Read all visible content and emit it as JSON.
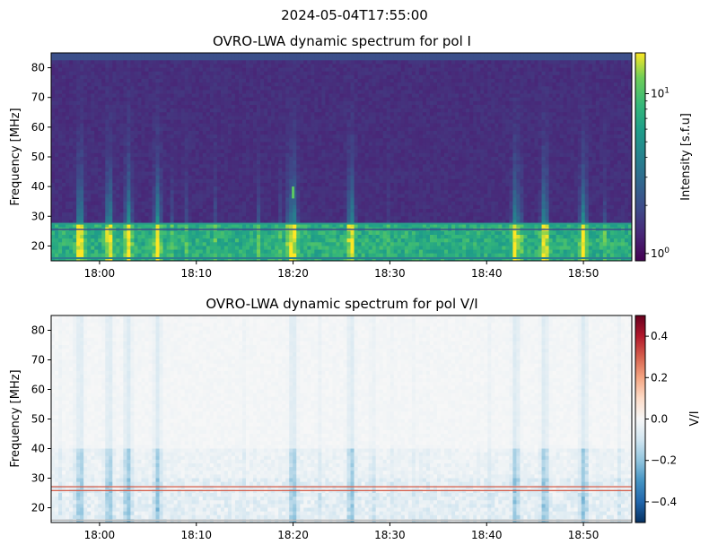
{
  "figure": {
    "suptitle": "2024-05-04T17:55:00"
  },
  "chart_data": [
    {
      "type": "heatmap",
      "title": "OVRO-LWA dynamic spectrum for pol I",
      "xlabel": "",
      "ylabel": "Frequency [MHz]",
      "x_ticks": [
        "18:00",
        "18:10",
        "18:20",
        "18:30",
        "18:40",
        "18:50"
      ],
      "x_tick_minutes": [
        5,
        15,
        25,
        35,
        45,
        55
      ],
      "xlim_minutes": [
        0,
        60
      ],
      "x_start_time": "17:55",
      "y_ticks": [
        20,
        30,
        40,
        50,
        60,
        70,
        80
      ],
      "ylim": [
        15,
        85
      ],
      "colormap": "viridis",
      "color_scale": "log",
      "colorbar": {
        "label": "Intensity [s.f.u]",
        "tick_labels": [
          "10^1",
          "10^0"
        ],
        "tick_values": [
          10,
          1
        ],
        "range": [
          0.9,
          18
        ]
      },
      "features": {
        "band_edge_mhz": 27.5,
        "narrow_emission_at_18_20_mhz": [
          36,
          40
        ],
        "bright_burst_times": [
          "17:58",
          "18:01",
          "18:03",
          "18:06",
          "18:20",
          "18:26",
          "18:43",
          "18:46",
          "18:50"
        ]
      }
    },
    {
      "type": "heatmap",
      "title": "OVRO-LWA dynamic spectrum for pol V/I",
      "xlabel": "",
      "ylabel": "Frequency [MHz]",
      "x_ticks": [
        "18:00",
        "18:10",
        "18:20",
        "18:30",
        "18:40",
        "18:50"
      ],
      "x_tick_minutes": [
        5,
        15,
        25,
        35,
        45,
        55
      ],
      "xlim_minutes": [
        0,
        60
      ],
      "x_start_time": "17:55",
      "y_ticks": [
        20,
        30,
        40,
        50,
        60,
        70,
        80
      ],
      "ylim": [
        15,
        85
      ],
      "colormap": "RdBu_r",
      "color_scale": "linear",
      "colorbar": {
        "label": "V/I",
        "tick_values": [
          0.4,
          0.2,
          0.0,
          -0.2,
          -0.4
        ],
        "tick_labels": [
          "0.4",
          "0.2",
          "0.0",
          "−0.2",
          "−0.4"
        ],
        "range": [
          -0.5,
          0.5
        ]
      },
      "features": {
        "red_lines_mhz": [
          27.3,
          26.0
        ]
      }
    }
  ]
}
